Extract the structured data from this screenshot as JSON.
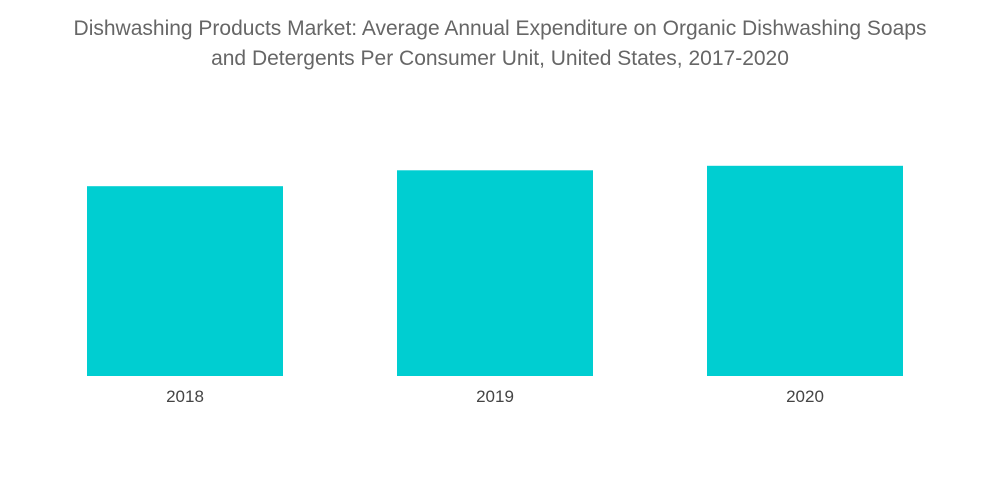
{
  "chart_data": {
    "type": "bar",
    "title_lines": [
      "Dishwashing Products Market: Average Annual Expenditure on Organic Dishwashing Soaps",
      "and Detergents Per Consumer Unit, United States, 2017-2020"
    ],
    "xlabel": "",
    "ylabel": "",
    "categories": [
      "2018",
      "2019",
      "2020"
    ],
    "values": [
      0.84,
      0.91,
      0.93
    ],
    "ylim": [
      0,
      1.0
    ],
    "grid": false,
    "legend": "none",
    "bar_color": "#00ced1"
  }
}
